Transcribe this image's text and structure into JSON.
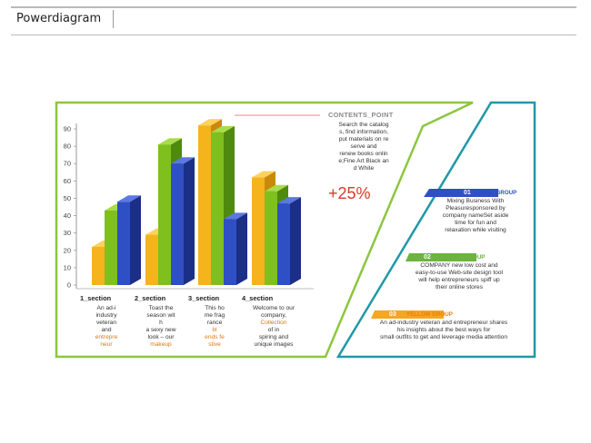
{
  "header": {
    "title": "Powerdiagram"
  },
  "colors": {
    "yellow": "#f5b31c",
    "green": "#7fbf1e",
    "blue": "#2f4fc4",
    "frame_green": "#8cc63f",
    "frame_teal": "#1f98a8",
    "accent_red": "#d63a2a"
  },
  "chart_data": {
    "type": "bar",
    "categories": [
      "1_section",
      "2_section",
      "3_section",
      "4_section"
    ],
    "series": [
      {
        "name": "",
        "values": [
          22,
          29,
          92,
          62
        ]
      },
      {
        "name": "",
        "values": [
          43,
          81,
          88,
          54
        ]
      },
      {
        "name": "",
        "values": [
          48,
          70,
          38,
          47
        ]
      }
    ],
    "yticks": [
      0,
      10,
      20,
      30,
      40,
      50,
      60,
      70,
      80,
      90
    ],
    "ylim": [
      0,
      90
    ]
  },
  "sections": [
    {
      "title": "1_section",
      "lines": [
        "An ad-i",
        "industry",
        "veteran",
        "and"
      ],
      "highlight": [
        "entrepre",
        "neur"
      ]
    },
    {
      "title": "2_section",
      "lines": [
        "Toast the",
        "season wit",
        "h",
        "a sexy new",
        "look – our"
      ],
      "highlight": [
        "makeup"
      ]
    },
    {
      "title": "3_section",
      "lines": [
        "This ho",
        "me frag",
        "rance"
      ],
      "highlight": [
        "bl",
        "ends fe",
        "stive"
      ]
    },
    {
      "title": "4_section",
      "lines": [
        "Welcome to our",
        "company,"
      ],
      "highlight": [
        "Collection"
      ],
      "after": [
        "of in",
        "spiring and",
        "unique images"
      ]
    }
  ],
  "contents_point": {
    "label": "CONTENTS_POINT",
    "text_lines": [
      "Search the catalog",
      "s, find information,",
      "put materials on re",
      "serve and",
      "renew books onlin",
      "e;Fine Art Black an",
      "d White"
    ],
    "percent": "+25%"
  },
  "groups": [
    {
      "num": "01",
      "name": "BLUE GROUP",
      "color": "#2f4fc4",
      "lines": [
        "Mixing Business With",
        "Pleasuresponsored by",
        "company nameSet aside",
        "time for fun and",
        "relaxation while visiting"
      ]
    },
    {
      "num": "02",
      "name": "GREEN GROUP",
      "color": "#6db33f",
      "lines": [
        "COMPANY new low cost and",
        "easy-to-use Web-site design tool",
        "will help entrepreneurs spiff up",
        "their online stores"
      ]
    },
    {
      "num": "03",
      "name": "YELLOW GROUP",
      "color": "#e87c10",
      "lines": [
        "An ad-industry veteran and entrepreneur shares",
        "his insights about the best ways for",
        "small outfits to get and leverage media attention"
      ]
    }
  ]
}
